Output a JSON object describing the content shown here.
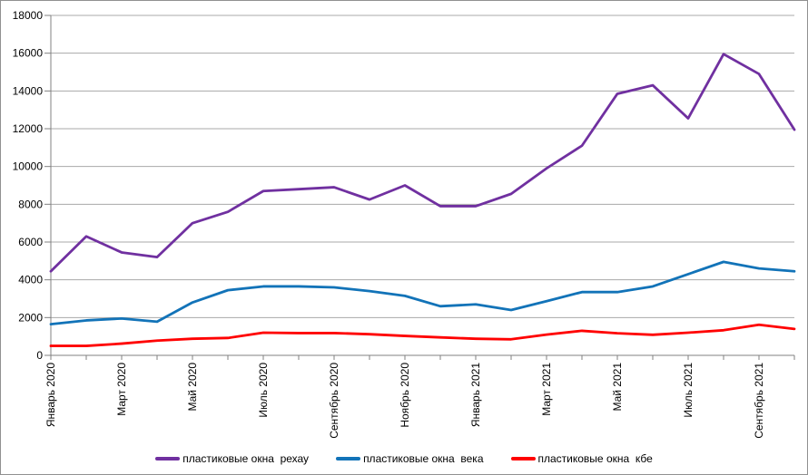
{
  "chart_data": {
    "type": "line",
    "title": "",
    "xlabel": "",
    "ylabel": "",
    "ylim": [
      0,
      18000
    ],
    "y_ticks": [
      0,
      2000,
      4000,
      6000,
      8000,
      10000,
      12000,
      14000,
      16000,
      18000
    ],
    "n_points": 22,
    "x_label_every": 2,
    "x_label_rotation": -90,
    "x_labels": [
      "Январь 2020",
      "Март 2020",
      "Май 2020",
      "Июль 2020",
      "Сентябрь 2020",
      "Ноябрь 2020",
      "Январь 2021",
      "Март 2021",
      "Май 2021",
      "Июль 2021",
      "Сентябрь 2021"
    ],
    "grid": "horizontal",
    "legend_position": "bottom-center",
    "colors": {
      "grid": "#A8A8A8",
      "axis": "#808080",
      "border": "#909090",
      "text": "#000000"
    },
    "series": [
      {
        "id": "rehau",
        "name": "пластиковые окна  рехау",
        "color": "#7030A0",
        "values": [
          4450,
          6300,
          5450,
          5200,
          7000,
          7600,
          8700,
          8800,
          8900,
          8250,
          9000,
          7900,
          7900,
          8550,
          9900,
          11100,
          13850,
          14300,
          12550,
          15950,
          14900,
          11950
        ]
      },
      {
        "id": "veka",
        "name": "пластиковые окна  века",
        "color": "#1273B8",
        "values": [
          1650,
          1850,
          1950,
          1780,
          2800,
          3450,
          3650,
          3650,
          3600,
          3400,
          3150,
          2600,
          2700,
          2400,
          2870,
          3350,
          3350,
          3650,
          4300,
          4950,
          4600,
          4450
        ]
      },
      {
        "id": "kbe",
        "name": "пластиковые окна  кбе",
        "color": "#FF0000",
        "values": [
          500,
          500,
          620,
          780,
          880,
          920,
          1200,
          1180,
          1180,
          1120,
          1030,
          950,
          880,
          850,
          1100,
          1300,
          1170,
          1090,
          1200,
          1330,
          1620,
          1400
        ]
      }
    ]
  }
}
